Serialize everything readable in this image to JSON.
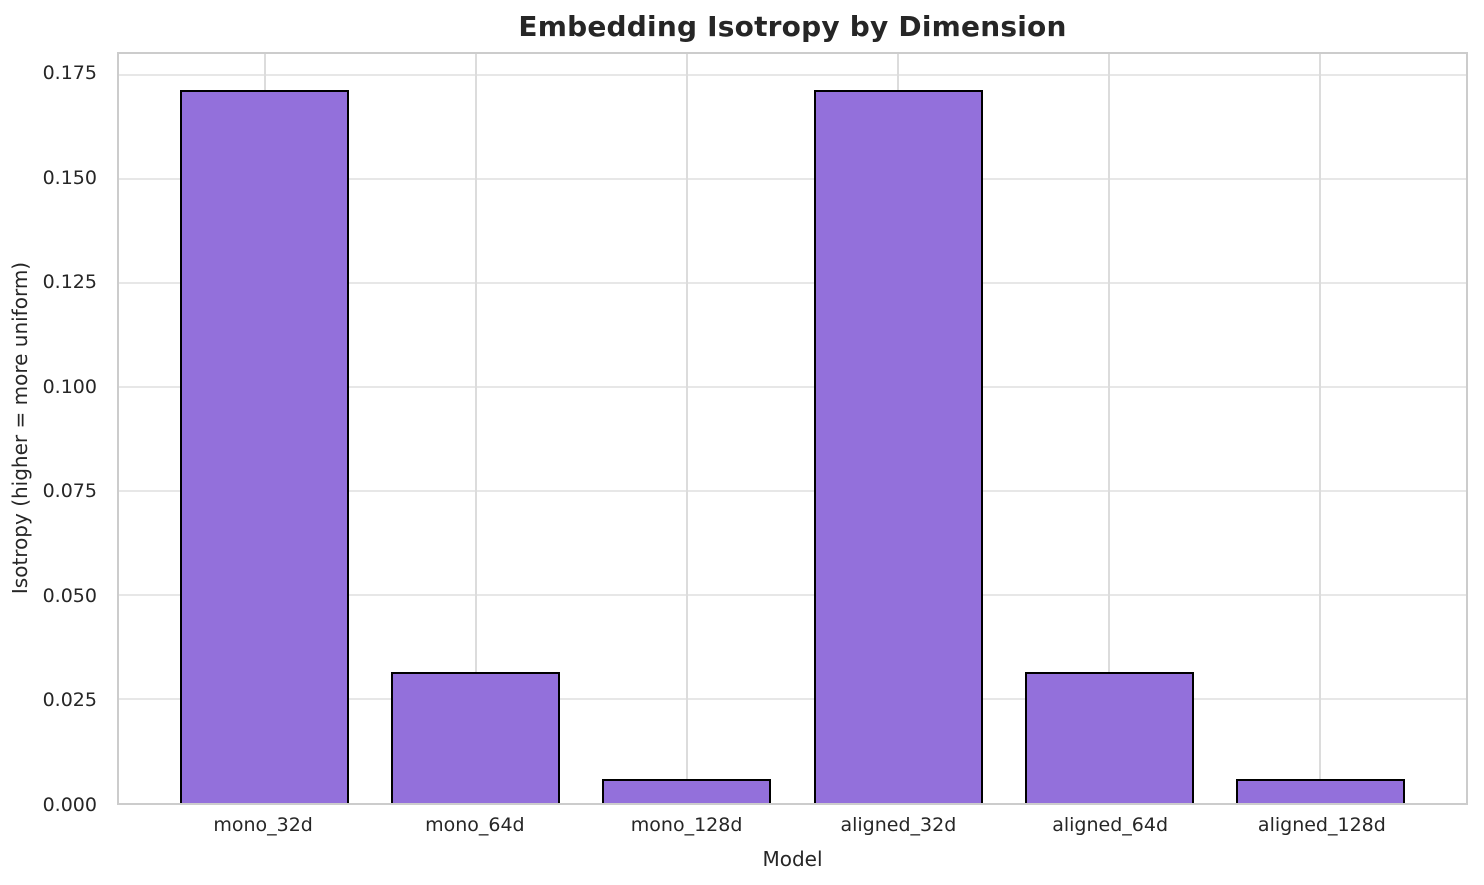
{
  "chart_data": {
    "type": "bar",
    "title": "Embedding Isotropy by Dimension",
    "xlabel": "Model",
    "ylabel": "Isotropy (higher = more uniform)",
    "categories": [
      "mono_32d",
      "mono_64d",
      "mono_128d",
      "aligned_32d",
      "aligned_64d",
      "aligned_128d"
    ],
    "values": [
      0.1715,
      0.0316,
      0.0057,
      0.1715,
      0.0316,
      0.0057
    ],
    "ylim": [
      0,
      0.1801
    ],
    "ytick_labels": [
      "0.000",
      "0.025",
      "0.050",
      "0.075",
      "0.100",
      "0.125",
      "0.150",
      "0.175"
    ],
    "grid": true,
    "legend": "none",
    "bar_width_fraction": 0.8,
    "colors": {
      "bar_fill": "#9370DB",
      "bar_edge": "#000000",
      "grid_horizontal": "#e7e7e7",
      "grid_vertical": "#dcdcdc",
      "spine": "#cccccc",
      "text": "#262626",
      "background": "#ffffff"
    }
  }
}
